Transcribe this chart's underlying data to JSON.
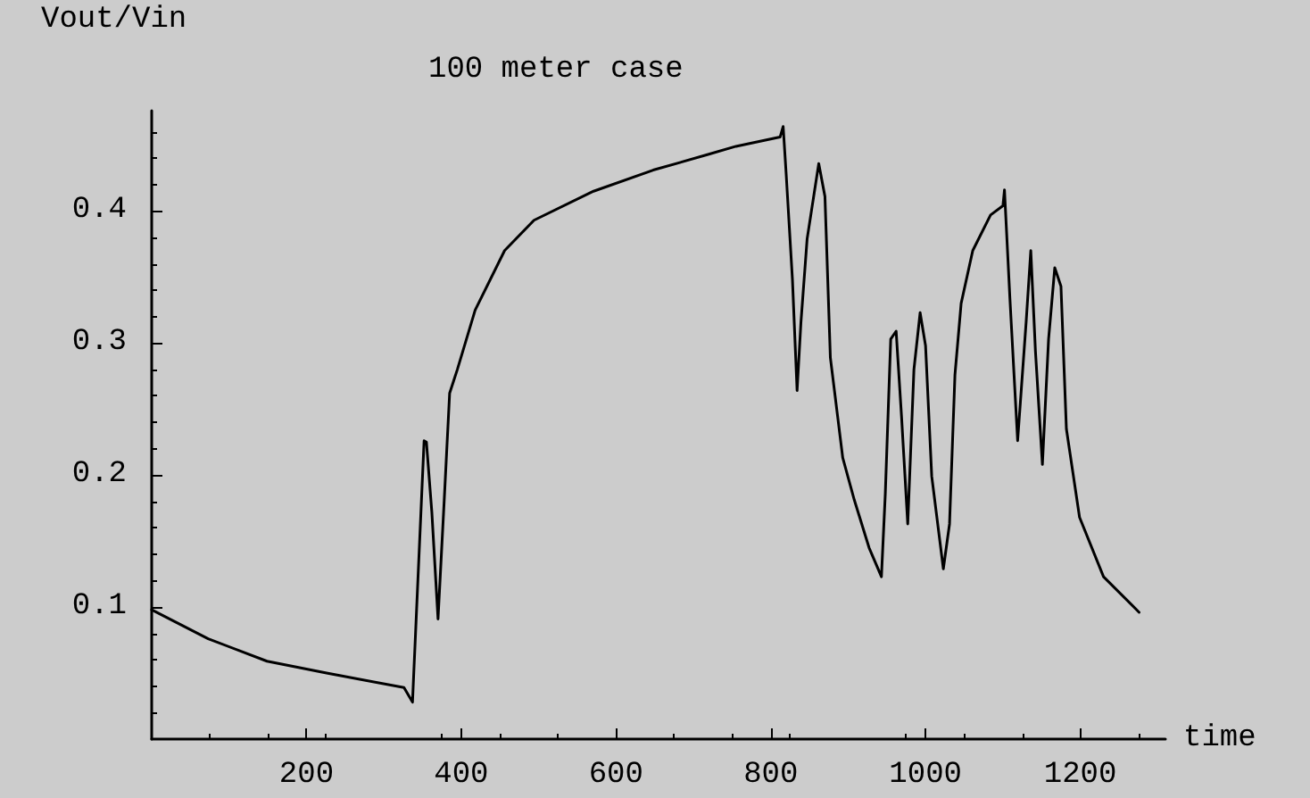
{
  "chart_data": {
    "type": "line",
    "title": "100 meter case",
    "xlabel": "time",
    "ylabel": "Vout/Vin",
    "xlim": [
      0,
      1310
    ],
    "ylim": [
      0,
      0.476
    ],
    "xticks": [
      200,
      400,
      600,
      800,
      1000,
      1200
    ],
    "yticks": [
      0.1,
      0.2,
      0.3,
      0.4
    ],
    "grid": false,
    "marker": "none",
    "line_style": "solid",
    "series": [
      {
        "color": "#000000",
        "x": [
          0,
          73,
          149,
          226,
          326,
          337,
          352,
          355,
          362,
          370,
          378,
          385,
          395,
          418,
          456,
          494,
          571,
          648,
          720,
          755,
          812,
          816,
          820,
          828,
          834,
          839,
          847,
          862,
          870,
          877,
          893,
          908,
          927,
          943,
          948,
          955,
          962,
          969,
          977,
          985,
          993,
          1000,
          1008,
          1023,
          1031,
          1038,
          1046,
          1061,
          1084,
          1100,
          1102,
          1109,
          1119,
          1130,
          1136,
          1142,
          1151,
          1159,
          1167,
          1175,
          1182,
          1199,
          1230,
          1276
        ],
        "values": [
          0.098,
          0.076,
          0.059,
          0.05,
          0.039,
          0.028,
          0.226,
          0.225,
          0.172,
          0.091,
          0.181,
          0.262,
          0.28,
          0.325,
          0.37,
          0.393,
          0.415,
          0.431,
          0.443,
          0.449,
          0.456,
          0.464,
          0.427,
          0.348,
          0.264,
          0.316,
          0.379,
          0.436,
          0.411,
          0.289,
          0.213,
          0.181,
          0.145,
          0.123,
          0.186,
          0.303,
          0.309,
          0.244,
          0.163,
          0.28,
          0.323,
          0.298,
          0.199,
          0.129,
          0.163,
          0.276,
          0.33,
          0.37,
          0.397,
          0.404,
          0.416,
          0.334,
          0.226,
          0.316,
          0.37,
          0.294,
          0.208,
          0.303,
          0.357,
          0.343,
          0.235,
          0.168,
          0.123,
          0.096
        ]
      }
    ]
  }
}
